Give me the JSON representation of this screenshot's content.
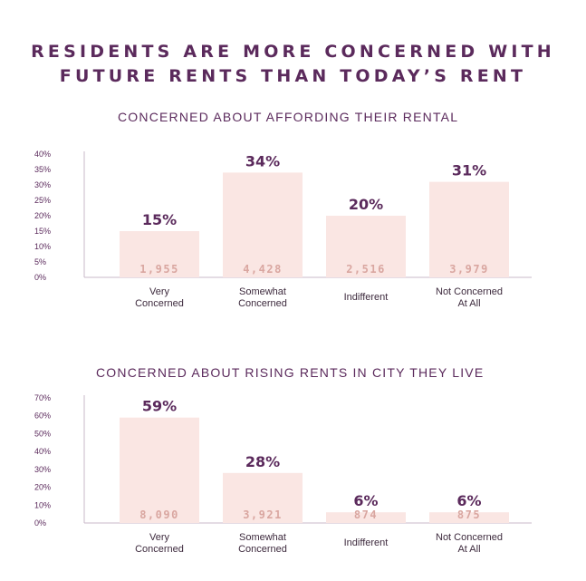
{
  "title_lines": [
    "RESIDENTS ARE MORE CONCERNED WITH",
    "FUTURE RENTS THAN TODAY’S RENT"
  ],
  "colors": {
    "bar": "#fae6e3",
    "text": "#5b2a5c",
    "axis": "#c9b8c9",
    "count": "#d9a6a0"
  },
  "chart_data": [
    {
      "type": "bar",
      "title": "CONCERNED ABOUT AFFORDING THEIR RENTAL",
      "categories": [
        [
          "Very",
          "Concerned"
        ],
        [
          "Somewhat",
          "Concerned"
        ],
        [
          "Indifferent"
        ],
        [
          "Not Concerned",
          "At All"
        ]
      ],
      "values": [
        15,
        34,
        20,
        31
      ],
      "value_labels": [
        "15%",
        "34%",
        "20%",
        "31%"
      ],
      "counts": [
        "1,955",
        "4,428",
        "2,516",
        "3,979"
      ],
      "yticks": [
        "0%",
        "5%",
        "10%",
        "15%",
        "20%",
        "25%",
        "30%",
        "35%",
        "40%"
      ],
      "ylim": [
        0,
        40
      ]
    },
    {
      "type": "bar",
      "title": "CONCERNED ABOUT RISING RENTS IN CITY THEY LIVE",
      "categories": [
        [
          "Very",
          "Concerned"
        ],
        [
          "Somewhat",
          "Concerned"
        ],
        [
          "Indifferent"
        ],
        [
          "Not Concerned",
          "At All"
        ]
      ],
      "values": [
        59,
        28,
        6,
        6
      ],
      "value_labels": [
        "59%",
        "28%",
        "6%",
        "6%"
      ],
      "counts": [
        "8,090",
        "3,921",
        "874",
        "875"
      ],
      "yticks": [
        "0%",
        "10%",
        "20%",
        "30%",
        "40%",
        "50%",
        "60%",
        "70%"
      ],
      "ylim": [
        0,
        70
      ]
    }
  ]
}
